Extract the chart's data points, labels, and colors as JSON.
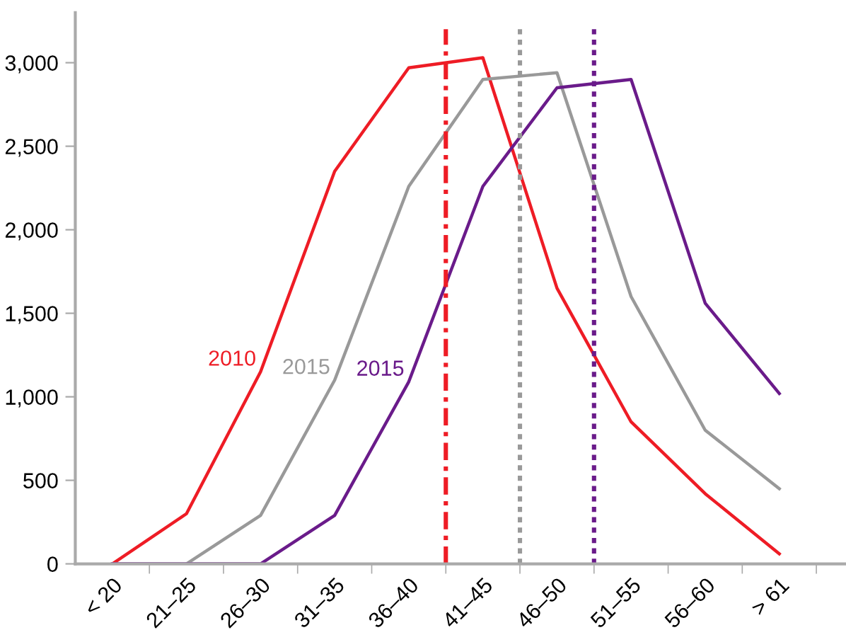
{
  "chart_data": {
    "type": "line",
    "categories": [
      "< 20",
      "21–25",
      "26–30",
      "31–35",
      "36–40",
      "41–45",
      "46–50",
      "51–55",
      "56–60",
      "> 61"
    ],
    "series": [
      {
        "name": "2010",
        "color": "#ee1c25",
        "values": [
          0,
          300,
          1150,
          2350,
          2970,
          3030,
          1650,
          850,
          420,
          60
        ]
      },
      {
        "name": "2015",
        "color": "#999999",
        "values": [
          null,
          0,
          290,
          1100,
          2260,
          2900,
          2940,
          1600,
          800,
          450
        ]
      },
      {
        "name": "2015",
        "color": "#6a1b8a",
        "values": [
          0,
          0,
          0,
          290,
          1090,
          2260,
          2850,
          2900,
          1560,
          1020
        ]
      }
    ],
    "ylim": [
      0,
      3300
    ],
    "yticks": [
      0,
      {
        "value": 500,
        "label": "500"
      },
      {
        "value": 1000,
        "label": "1,000"
      },
      {
        "value": 1500,
        "label": "1,500"
      },
      {
        "value": 2000,
        "label": "2,000"
      },
      {
        "value": 2500,
        "label": "2,500"
      },
      {
        "value": 3000,
        "label": "3,000"
      }
    ],
    "ref_lines": [
      {
        "axis": "x",
        "value": "41–45",
        "color": "#ee1c25",
        "line_style": "dashed"
      },
      {
        "axis": "x",
        "value": "46–50",
        "color": "#999999",
        "line_style": "dotted"
      },
      {
        "axis": "x",
        "value": "51–55",
        "color": "#6a1b8a",
        "line_style": "dotted"
      }
    ],
    "grid": false,
    "marker": "none",
    "line_style": "solid"
  }
}
